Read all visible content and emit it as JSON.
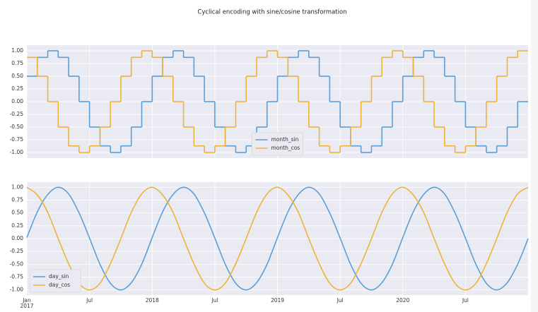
{
  "chart_data": [
    {
      "type": "step",
      "title": "Cyclical encoding with sine/cosine transformation",
      "x": [
        "2017-01",
        "2017-02",
        "2017-03",
        "2017-04",
        "2017-05",
        "2017-06",
        "2017-07",
        "2017-08",
        "2017-09",
        "2017-10",
        "2017-11",
        "2017-12",
        "2018-01",
        "2018-02",
        "2018-03",
        "2018-04",
        "2018-05",
        "2018-06",
        "2018-07",
        "2018-08",
        "2018-09",
        "2018-10",
        "2018-11",
        "2018-12",
        "2019-01",
        "2019-02",
        "2019-03",
        "2019-04",
        "2019-05",
        "2019-06",
        "2019-07",
        "2019-08",
        "2019-09",
        "2019-10",
        "2019-11",
        "2019-12",
        "2020-01",
        "2020-02",
        "2020-03",
        "2020-04",
        "2020-05",
        "2020-06",
        "2020-07",
        "2020-08",
        "2020-09",
        "2020-10",
        "2020-11",
        "2020-12"
      ],
      "series": [
        {
          "name": "month_sin",
          "color": "#5b9fd6",
          "values": [
            0.5,
            0.87,
            1.0,
            0.87,
            0.5,
            0.0,
            -0.5,
            -0.87,
            -1.0,
            -0.87,
            -0.5,
            0.0,
            0.5,
            0.87,
            1.0,
            0.87,
            0.5,
            0.0,
            -0.5,
            -0.87,
            -1.0,
            -0.87,
            -0.5,
            0.0,
            0.5,
            0.87,
            1.0,
            0.87,
            0.5,
            0.0,
            -0.5,
            -0.87,
            -1.0,
            -0.87,
            -0.5,
            0.0,
            0.5,
            0.87,
            1.0,
            0.87,
            0.5,
            0.0,
            -0.5,
            -0.87,
            -1.0,
            -0.87,
            -0.5,
            0.0
          ]
        },
        {
          "name": "month_cos",
          "color": "#eeb33a",
          "values": [
            0.87,
            0.5,
            0.0,
            -0.5,
            -0.87,
            -1.0,
            -0.87,
            -0.5,
            0.0,
            0.5,
            0.87,
            1.0,
            0.87,
            0.5,
            0.0,
            -0.5,
            -0.87,
            -1.0,
            -0.87,
            -0.5,
            0.0,
            0.5,
            0.87,
            1.0,
            0.87,
            0.5,
            0.0,
            -0.5,
            -0.87,
            -1.0,
            -0.87,
            -0.5,
            0.0,
            0.5,
            0.87,
            1.0,
            0.87,
            0.5,
            0.0,
            -0.5,
            -0.87,
            -1.0,
            -0.87,
            -0.5,
            0.0,
            0.5,
            0.87,
            1.0
          ]
        }
      ],
      "xlim": [
        "2017-01",
        "2021-01"
      ],
      "ylim": [
        -1.11,
        1.11
      ],
      "yticks": [
        {
          "value": 1,
          "label": "1.00"
        },
        {
          "value": 0.75,
          "label": "0.75"
        },
        {
          "value": 0.5,
          "label": "0.50"
        },
        {
          "value": 0.25,
          "label": "0.25"
        },
        {
          "value": 0,
          "label": "0.00"
        },
        {
          "value": -0.25,
          "label": "-0.25"
        },
        {
          "value": -0.5,
          "label": "-0.50"
        },
        {
          "value": -0.75,
          "label": "-0.75"
        },
        {
          "value": -1,
          "label": "-1.00"
        }
      ],
      "xticks": [
        "2017-01",
        "2017-07",
        "2018-01",
        "2018-07",
        "2019-01",
        "2019-07",
        "2020-01",
        "2020-07"
      ],
      "grid": true,
      "legend": "lower center"
    },
    {
      "type": "line",
      "x": [
        "2017-01",
        "2017-02",
        "2017-03",
        "2017-04",
        "2017-05",
        "2017-06",
        "2017-07",
        "2017-08",
        "2017-09",
        "2017-10",
        "2017-11",
        "2017-12",
        "2018-01",
        "2018-02",
        "2018-03",
        "2018-04",
        "2018-05",
        "2018-06",
        "2018-07",
        "2018-08",
        "2018-09",
        "2018-10",
        "2018-11",
        "2018-12",
        "2019-01",
        "2019-02",
        "2019-03",
        "2019-04",
        "2019-05",
        "2019-06",
        "2019-07",
        "2019-08",
        "2019-09",
        "2019-10",
        "2019-11",
        "2019-12",
        "2020-01",
        "2020-02",
        "2020-03",
        "2020-04",
        "2020-05",
        "2020-06",
        "2020-07",
        "2020-08",
        "2020-09",
        "2020-10",
        "2020-11",
        "2020-12",
        "2021-01"
      ],
      "series": [
        {
          "name": "day_sin",
          "color": "#5b9fd6",
          "values": [
            0.02,
            0.52,
            0.86,
            1.0,
            0.87,
            0.5,
            0.01,
            -0.5,
            -0.87,
            -1.0,
            -0.86,
            -0.5,
            0.02,
            0.52,
            0.86,
            1.0,
            0.87,
            0.5,
            0.01,
            -0.5,
            -0.87,
            -1.0,
            -0.86,
            -0.5,
            0.02,
            0.52,
            0.86,
            1.0,
            0.87,
            0.5,
            0.01,
            -0.5,
            -0.87,
            -1.0,
            -0.86,
            -0.5,
            0.02,
            0.52,
            0.86,
            1.0,
            0.87,
            0.5,
            0.01,
            -0.5,
            -0.87,
            -1.0,
            -0.86,
            -0.5,
            0.0
          ]
        },
        {
          "name": "day_cos",
          "color": "#eeb33a",
          "values": [
            1.0,
            0.85,
            0.51,
            0.0,
            -0.49,
            -0.87,
            -1.0,
            -0.87,
            -0.49,
            0.0,
            0.51,
            0.87,
            1.0,
            0.85,
            0.51,
            0.0,
            -0.49,
            -0.87,
            -1.0,
            -0.87,
            -0.49,
            0.0,
            0.51,
            0.87,
            1.0,
            0.85,
            0.51,
            0.0,
            -0.49,
            -0.87,
            -1.0,
            -0.87,
            -0.49,
            0.0,
            0.51,
            0.87,
            1.0,
            0.85,
            0.51,
            0.0,
            -0.49,
            -0.87,
            -1.0,
            -0.87,
            -0.49,
            0.0,
            0.51,
            0.87,
            1.0
          ]
        }
      ],
      "xlim": [
        "2017-01",
        "2021-01"
      ],
      "ylim": [
        -1.1,
        1.1
      ],
      "yticks": [
        {
          "value": 1,
          "label": "1.00"
        },
        {
          "value": 0.75,
          "label": "0.75"
        },
        {
          "value": 0.5,
          "label": "0.50"
        },
        {
          "value": 0.25,
          "label": "0.25"
        },
        {
          "value": 0,
          "label": "0.00"
        },
        {
          "value": -0.25,
          "label": "-0.25"
        },
        {
          "value": -0.5,
          "label": "-0.50"
        },
        {
          "value": -0.75,
          "label": "-0.75"
        },
        {
          "value": -1,
          "label": "-1.00"
        }
      ],
      "xticks": [
        {
          "value": "2017-01",
          "label": "Jan 2017"
        },
        {
          "value": "2017-07",
          "label": "Jul"
        },
        {
          "value": "2018-01",
          "label": "2018"
        },
        {
          "value": "2018-07",
          "label": "Jul"
        },
        {
          "value": "2019-01",
          "label": "2019"
        },
        {
          "value": "2019-07",
          "label": "Jul"
        },
        {
          "value": "2020-01",
          "label": "2020"
        },
        {
          "value": "2020-07",
          "label": "Jul"
        }
      ],
      "grid": true,
      "legend": "lower left"
    }
  ]
}
